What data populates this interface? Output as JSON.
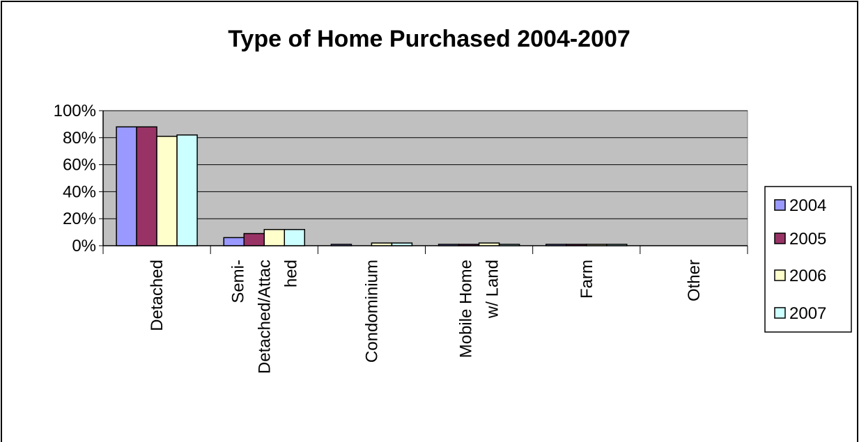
{
  "chart_data": {
    "type": "bar",
    "title": "Type of Home Purchased 2004-2007",
    "categories": [
      "Detached",
      "Semi-\nDetached/Attac\nhed",
      "Condominium",
      "Mobile Home\nw/ Land",
      "Farm",
      "Other"
    ],
    "series": [
      {
        "name": "2004",
        "color": "#9999ff",
        "values": [
          88,
          6,
          1,
          1,
          1,
          0
        ]
      },
      {
        "name": "2005",
        "color": "#993366",
        "values": [
          88,
          9,
          0,
          1,
          1,
          0
        ]
      },
      {
        "name": "2006",
        "color": "#ffffcc",
        "values": [
          81,
          12,
          2,
          2,
          1,
          0
        ]
      },
      {
        "name": "2007",
        "color": "#ccffff",
        "values": [
          82,
          12,
          2,
          1,
          1,
          0
        ]
      }
    ],
    "ylim": [
      0,
      100
    ],
    "yticks": [
      {
        "value": 0,
        "label": "0%"
      },
      {
        "value": 20,
        "label": "20%"
      },
      {
        "value": 40,
        "label": "40%"
      },
      {
        "value": 60,
        "label": "60%"
      },
      {
        "value": 80,
        "label": "80%"
      },
      {
        "value": 100,
        "label": "100%"
      }
    ],
    "grid": true,
    "legend": "right",
    "plot_background": "#c0c0c0"
  }
}
